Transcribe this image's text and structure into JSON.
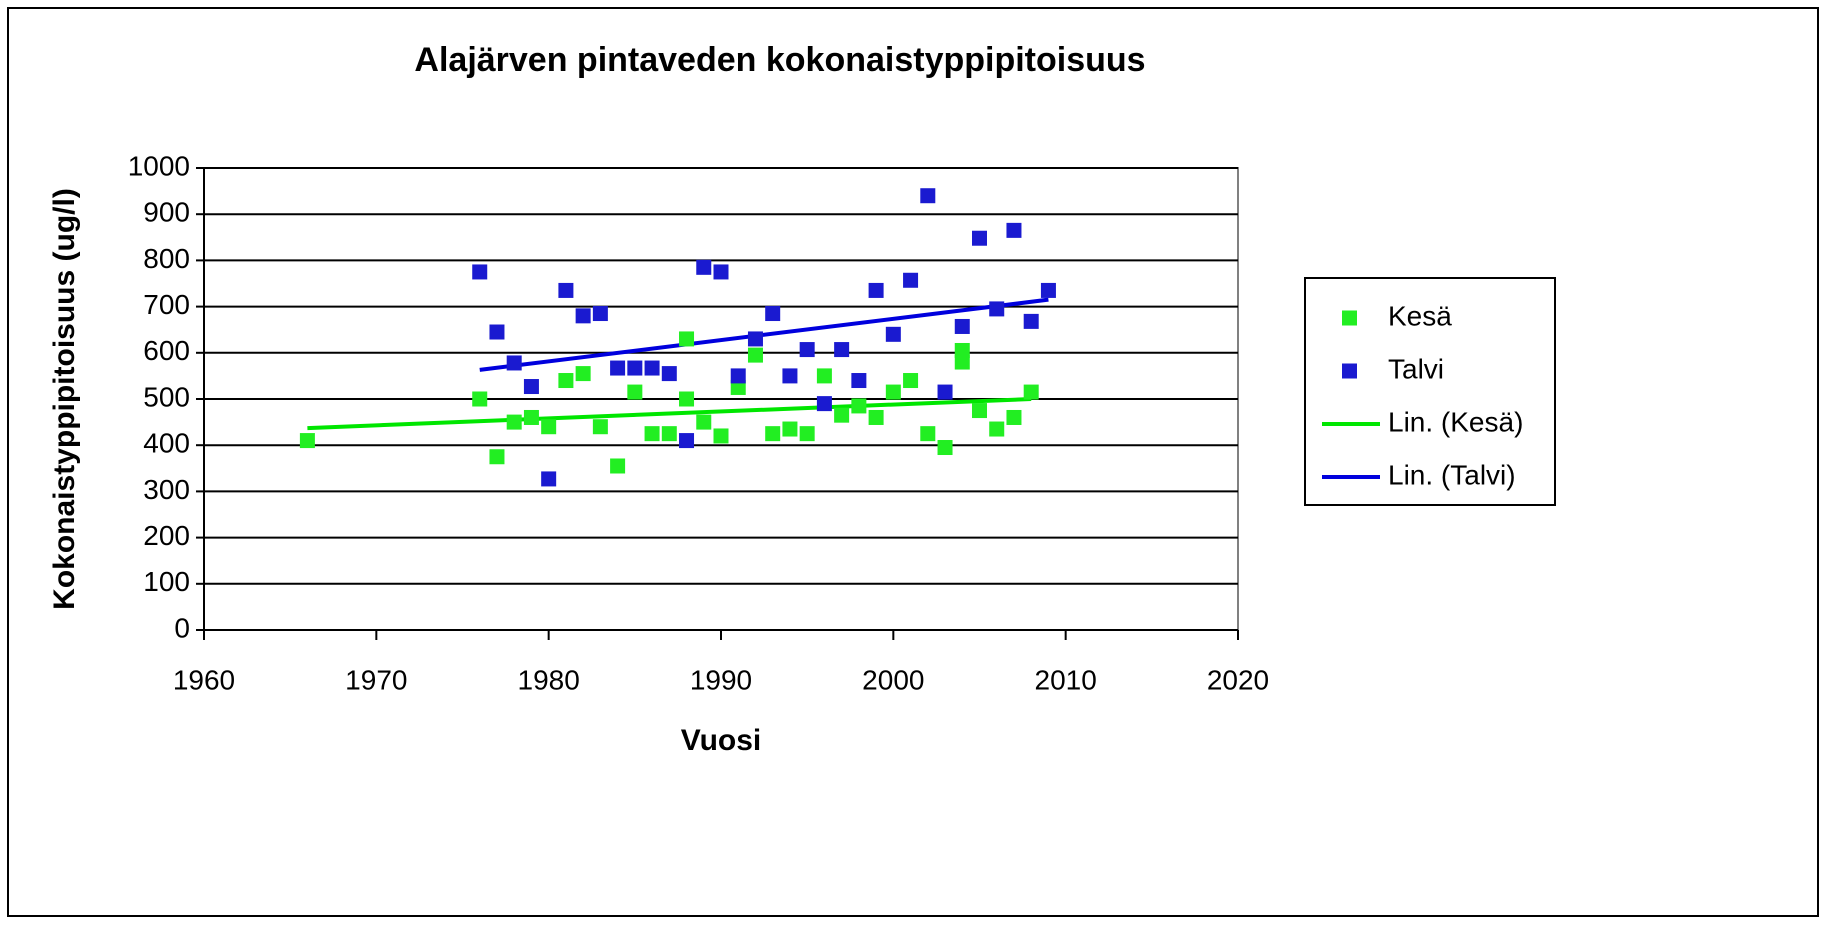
{
  "chart_data": {
    "type": "scatter",
    "title": "Alajärven pintaveden kokonaistyppipitoisuus",
    "xlabel": "Vuosi",
    "ylabel": "Kokonaistyppipitoisuus (ug/l)",
    "xlim": [
      1960,
      2020
    ],
    "ylim": [
      0,
      1000
    ],
    "xticks": [
      1960,
      1970,
      1980,
      1990,
      2000,
      2010,
      2020
    ],
    "yticks": [
      0,
      100,
      200,
      300,
      400,
      500,
      600,
      700,
      800,
      900,
      1000
    ],
    "grid": true,
    "legend": "right",
    "series": [
      {
        "name": "Kesä",
        "type": "scatter",
        "color": "#22ee22",
        "x": [
          1966,
          1976,
          1977,
          1978,
          1979,
          1980,
          1981,
          1982,
          1983,
          1984,
          1985,
          1986,
          1987,
          1988,
          1988,
          1989,
          1990,
          1991,
          1992,
          1993,
          1994,
          1995,
          1996,
          1997,
          1998,
          1999,
          2000,
          2001,
          2002,
          2003,
          2004,
          2004,
          2005,
          2006,
          2007,
          2008
        ],
        "values": [
          410,
          500,
          375,
          450,
          460,
          440,
          540,
          555,
          440,
          355,
          515,
          425,
          425,
          630,
          500,
          450,
          420,
          525,
          595,
          425,
          435,
          425,
          550,
          465,
          485,
          460,
          515,
          540,
          425,
          395,
          605,
          580,
          475,
          435,
          460,
          515
        ]
      },
      {
        "name": "Talvi",
        "type": "scatter",
        "color": "#1a1ad0",
        "x": [
          1976,
          1977,
          1978,
          1979,
          1980,
          1981,
          1982,
          1983,
          1984,
          1985,
          1986,
          1987,
          1988,
          1989,
          1990,
          1991,
          1992,
          1993,
          1994,
          1995,
          1996,
          1997,
          1998,
          1999,
          2000,
          2001,
          2002,
          2003,
          2004,
          2005,
          2006,
          2007,
          2008,
          2009
        ],
        "values": [
          775,
          645,
          578,
          527,
          327,
          735,
          680,
          685,
          567,
          567,
          567,
          555,
          410,
          785,
          775,
          550,
          630,
          685,
          550,
          607,
          490,
          607,
          540,
          735,
          640,
          757,
          940,
          515,
          657,
          848,
          695,
          865,
          668,
          735
        ]
      },
      {
        "name": "Lin. (Kesä)",
        "type": "line",
        "color": "#00e600",
        "x": [
          1966,
          2008
        ],
        "values": [
          437,
          500
        ]
      },
      {
        "name": "Lin. (Talvi)",
        "type": "line",
        "color": "#0000dd",
        "x": [
          1976,
          2009
        ],
        "values": [
          563,
          715
        ]
      }
    ]
  }
}
